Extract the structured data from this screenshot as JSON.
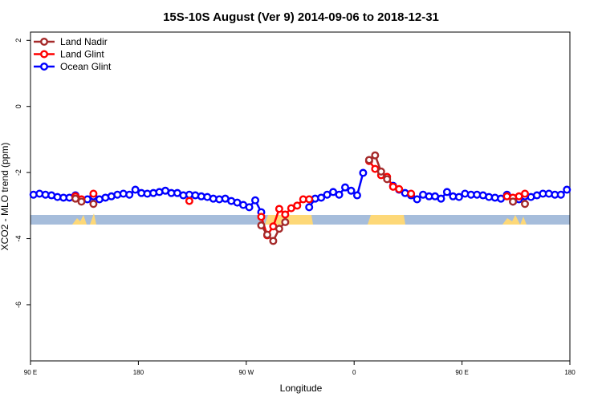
{
  "chart_data": {
    "type": "line",
    "title": "15S-10S August (Ver 9)   2014-09-06 to 2018-12-31",
    "x_label": "Longitude",
    "y_label": "XCO2 - MLO trend (ppm)",
    "xlim": [
      90,
      540
    ],
    "xticks": [
      {
        "value": 90,
        "label": "90 E"
      },
      180,
      {
        "value": 270,
        "label": "90 W"
      },
      {
        "value": 360,
        "label": "0"
      },
      {
        "value": 450,
        "label": "90 E"
      },
      {
        "value": 540,
        "label": "180"
      }
    ],
    "ylim": [
      -7.7,
      2.25
    ],
    "yticks": [
      -6,
      -4,
      -2,
      0,
      2
    ],
    "legend": "top-left",
    "x": [
      92.5,
      97.5,
      102.5,
      107.5,
      112.5,
      117.5,
      122.5,
      127.5,
      132.5,
      137.5,
      142.5,
      147.5,
      152.5,
      157.5,
      162.5,
      167.5,
      172.5,
      177.5,
      182.5,
      187.5,
      192.5,
      197.5,
      202.5,
      207.5,
      212.5,
      217.5,
      222.5,
      227.5,
      232.5,
      237.5,
      242.5,
      247.5,
      252.5,
      257.5,
      262.5,
      267.5,
      272.5,
      277.5,
      282.5,
      287.5,
      292.5,
      297.5,
      302.5,
      307.5,
      312.5,
      317.5,
      322.5,
      327.5,
      332.5,
      337.5,
      342.5,
      347.5,
      352.5,
      357.5,
      362.5,
      367.5,
      372.5,
      377.5,
      382.5,
      387.5,
      392.5,
      397.5,
      402.5,
      407.5,
      412.5,
      417.5,
      422.5,
      427.5,
      432.5,
      437.5,
      442.5,
      447.5,
      452.5,
      457.5,
      462.5,
      467.5,
      472.5,
      477.5,
      482.5,
      487.5,
      492.5,
      497.5,
      502.5,
      507.5,
      512.5,
      517.5,
      522.5,
      527.5,
      532.5,
      537.5
    ],
    "series": [
      {
        "name": "Land Nadir",
        "color": "#a52a2a",
        "values": [
          null,
          null,
          null,
          null,
          null,
          null,
          null,
          -2.79,
          -2.88,
          null,
          -2.95,
          null,
          null,
          null,
          null,
          null,
          null,
          null,
          null,
          null,
          null,
          null,
          null,
          null,
          null,
          null,
          null,
          null,
          null,
          null,
          null,
          null,
          null,
          null,
          null,
          null,
          null,
          null,
          -3.6,
          -3.88,
          -4.07,
          -3.7,
          -3.5,
          null,
          null,
          null,
          null,
          null,
          null,
          null,
          null,
          null,
          null,
          null,
          null,
          null,
          -1.62,
          -1.48,
          -1.97,
          -2.2,
          null,
          null,
          null,
          null,
          null,
          null,
          null,
          null,
          null,
          null,
          null,
          null,
          null,
          null,
          null,
          null,
          null,
          null,
          null,
          null,
          -2.88,
          null,
          -2.95,
          null,
          null,
          null,
          null,
          null,
          null,
          null
        ]
      },
      {
        "name": "Land Glint",
        "color": "#ff0000",
        "values": [
          null,
          null,
          null,
          null,
          null,
          null,
          null,
          -2.72,
          -2.81,
          null,
          -2.64,
          null,
          null,
          null,
          null,
          null,
          null,
          null,
          null,
          null,
          null,
          null,
          null,
          null,
          null,
          null,
          -2.86,
          null,
          null,
          null,
          null,
          null,
          null,
          null,
          null,
          null,
          null,
          null,
          -3.34,
          -3.9,
          -3.63,
          -3.1,
          -3.27,
          -3.08,
          -3.0,
          -2.81,
          -2.81,
          null,
          null,
          null,
          null,
          null,
          null,
          null,
          null,
          null,
          -1.65,
          -1.89,
          -2.08,
          -2.13,
          -2.43,
          -2.5,
          null,
          -2.64,
          null,
          null,
          null,
          null,
          null,
          null,
          null,
          null,
          null,
          null,
          null,
          null,
          null,
          null,
          null,
          -2.72,
          -2.76,
          -2.72,
          -2.64,
          null,
          null,
          null,
          null,
          null,
          null,
          null
        ]
      },
      {
        "name": "Ocean Glint",
        "color": "#0000ff",
        "values": [
          -2.67,
          -2.64,
          -2.67,
          -2.69,
          -2.74,
          -2.76,
          -2.76,
          -2.69,
          -2.84,
          -2.81,
          -2.72,
          -2.81,
          -2.76,
          -2.72,
          -2.67,
          -2.64,
          -2.67,
          -2.52,
          -2.62,
          -2.64,
          -2.62,
          -2.59,
          -2.55,
          -2.62,
          -2.62,
          -2.69,
          -2.67,
          -2.69,
          -2.72,
          -2.74,
          -2.79,
          -2.81,
          -2.79,
          -2.86,
          -2.91,
          -2.98,
          -3.05,
          -2.84,
          -3.2,
          null,
          null,
          null,
          null,
          null,
          null,
          null,
          -3.05,
          -2.79,
          -2.76,
          -2.67,
          -2.59,
          -2.67,
          -2.45,
          -2.55,
          -2.69,
          -2.01,
          null,
          null,
          null,
          null,
          -2.4,
          -2.52,
          -2.62,
          -2.69,
          -2.81,
          -2.67,
          -2.72,
          -2.72,
          -2.79,
          -2.59,
          -2.72,
          -2.74,
          -2.64,
          -2.67,
          -2.67,
          -2.69,
          -2.74,
          -2.76,
          -2.79,
          -2.67,
          -2.88,
          -2.81,
          -2.72,
          -2.74,
          -2.69,
          -2.64,
          -2.64,
          -2.67,
          -2.67,
          -2.52
        ]
      }
    ]
  }
}
